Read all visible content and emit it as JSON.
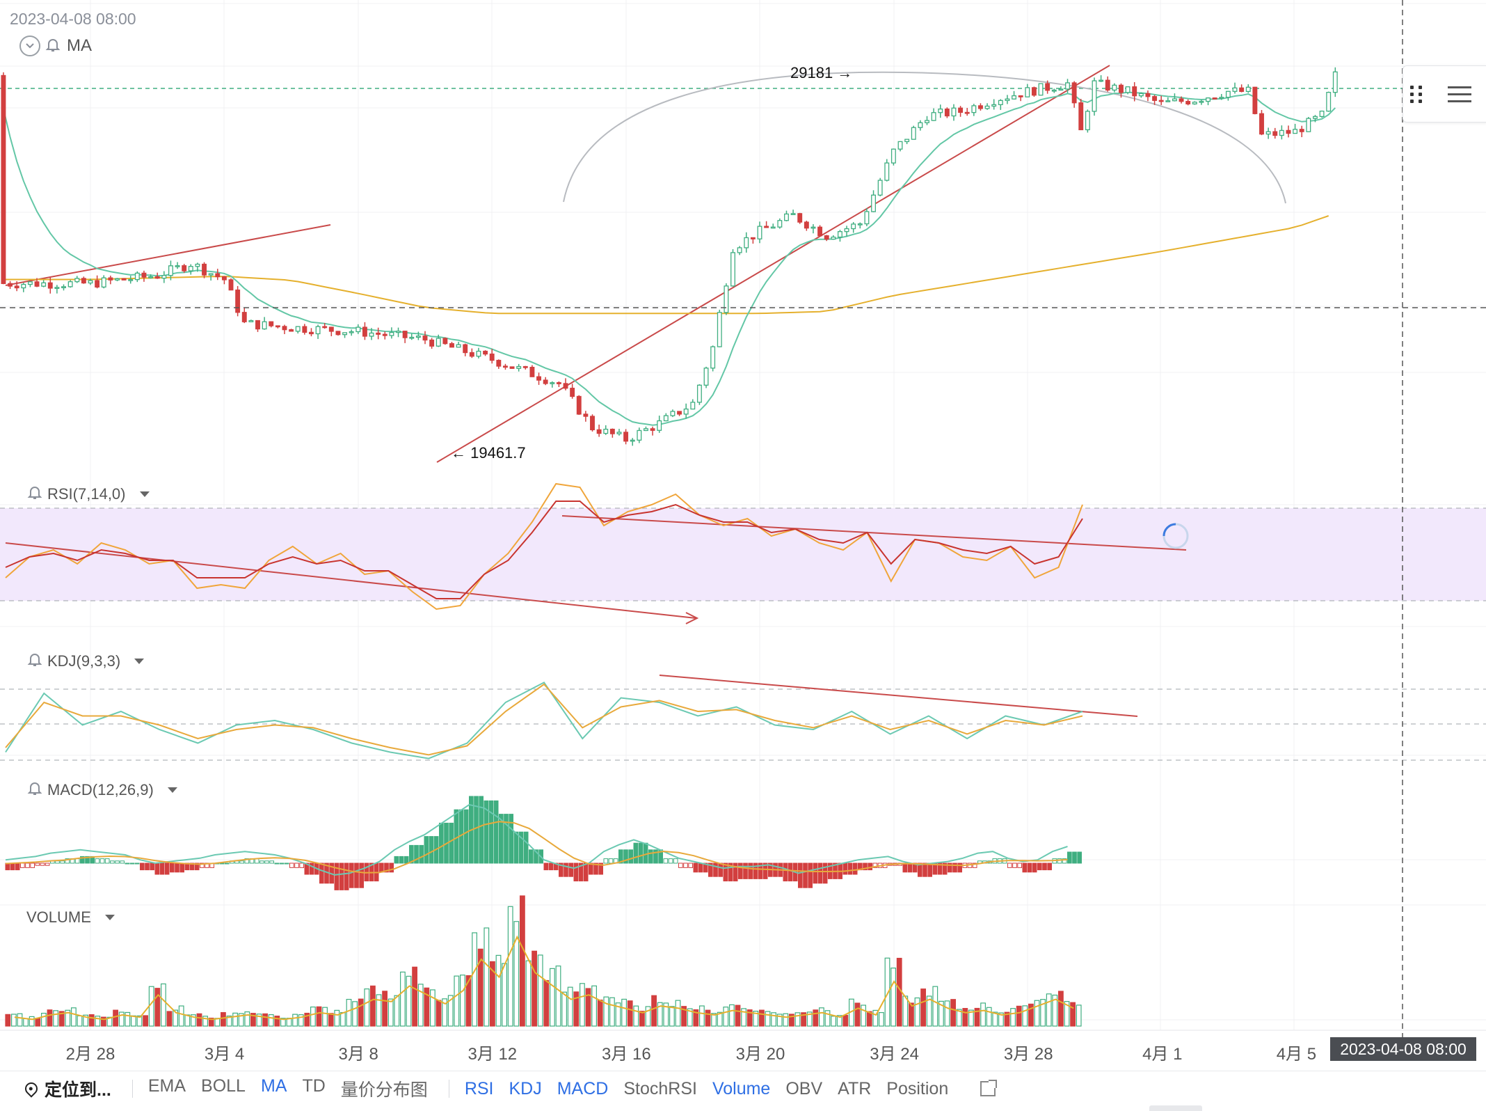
{
  "header": {
    "datetime": "2023-04-08 08:00",
    "ma_label": "MA",
    "high_label": "29181 →",
    "low_label": "← 19461.7"
  },
  "panels": {
    "rsi": "RSI(7,14,0)",
    "kdj": "KDJ(9,3,3)",
    "macd": "MACD(12,26,9)",
    "volume": "VOLUME"
  },
  "x_axis": {
    "labels": [
      "2月 28",
      "3月 4",
      "3月 8",
      "3月 12",
      "3月 16",
      "3月 20",
      "3月 24",
      "3月 28",
      "4月 1",
      "4月 5"
    ],
    "cursor_date": "2023-04-08 08:00"
  },
  "toolbar": {
    "locate": "定位到...",
    "main_indicators": [
      {
        "label": "EMA",
        "active": false
      },
      {
        "label": "BOLL",
        "active": false
      },
      {
        "label": "MA",
        "active": true
      },
      {
        "label": "TD",
        "active": false
      },
      {
        "label": "量价分布图",
        "active": false
      }
    ],
    "sub_indicators": [
      {
        "label": "RSI",
        "active": true
      },
      {
        "label": "KDJ",
        "active": true
      },
      {
        "label": "MACD",
        "active": true
      },
      {
        "label": "StochRSI",
        "active": false
      },
      {
        "label": "Volume",
        "active": true
      },
      {
        "label": "OBV",
        "active": false
      },
      {
        "label": "ATR",
        "active": false
      },
      {
        "label": "Position",
        "active": false
      }
    ]
  },
  "colors": {
    "up": "#3fae80",
    "down": "#d23f3f",
    "ma_fast": "#63c7a6",
    "ma_slow": "#e5b02d",
    "rsi_fast": "#f0a53a",
    "rsi_slow": "#c8342f",
    "kdj_k": "#6bc9b2",
    "kdj_d": "#e8a93b",
    "trendline": "#c94a4a",
    "rsi_band": "#f2e8fc"
  },
  "chart_data": {
    "type": "candlestick",
    "price_high": 29181,
    "price_low": 19461.7,
    "x_labels": [
      "2月 28",
      "3月 4",
      "3月 8",
      "3月 12",
      "3月 16",
      "3月 20",
      "3月 24",
      "3月 28",
      "4月 1",
      "4月 5"
    ],
    "price_path": [
      [
        0,
        23400
      ],
      [
        1,
        23600
      ],
      [
        1.5,
        23900
      ],
      [
        2,
        23500
      ],
      [
        2.3,
        22400
      ],
      [
        3,
        22300
      ],
      [
        4,
        22200
      ],
      [
        5,
        22000
      ],
      [
        6,
        21500
      ],
      [
        7,
        20900
      ],
      [
        7.5,
        19800
      ],
      [
        8,
        19500
      ],
      [
        8.5,
        19900
      ],
      [
        9,
        20400
      ],
      [
        9.3,
        21800
      ],
      [
        9.6,
        24300
      ],
      [
        10,
        24700
      ],
      [
        10.5,
        25100
      ],
      [
        11,
        24600
      ],
      [
        11.5,
        24900
      ],
      [
        12,
        26700
      ],
      [
        12.5,
        27600
      ],
      [
        13,
        27700
      ],
      [
        13.5,
        28000
      ],
      [
        14,
        28200
      ],
      [
        14.6,
        28400
      ],
      [
        14.8,
        27200
      ],
      [
        15,
        28400
      ],
      [
        15.5,
        28200
      ],
      [
        16,
        27900
      ],
      [
        16.5,
        28000
      ],
      [
        17,
        28200
      ],
      [
        17.3,
        28200
      ],
      [
        17.5,
        27100
      ],
      [
        18,
        27200
      ],
      [
        18.4,
        27600
      ],
      [
        18.6,
        28600
      ]
    ],
    "ma_slow_path": [
      [
        0,
        23500
      ],
      [
        2,
        23580
      ],
      [
        3,
        23480
      ],
      [
        4,
        23150
      ],
      [
        5,
        22800
      ],
      [
        6,
        22650
      ],
      [
        8,
        22650
      ],
      [
        10,
        22650
      ],
      [
        11,
        22700
      ],
      [
        12,
        23100
      ],
      [
        14,
        23650
      ],
      [
        16,
        24200
      ],
      [
        18,
        24800
      ],
      [
        18.6,
        25150
      ]
    ],
    "rsi": {
      "fast": [
        28,
        40,
        44,
        36,
        48,
        44,
        36,
        38,
        22,
        24,
        22,
        38,
        46,
        36,
        42,
        30,
        32,
        20,
        10,
        12,
        30,
        42,
        60,
        82,
        80,
        58,
        66,
        70,
        76,
        64,
        58,
        62,
        52,
        56,
        48,
        44,
        54,
        26,
        50,
        48,
        40,
        38,
        46,
        28,
        34,
        70
      ],
      "slow": [
        34,
        40,
        42,
        38,
        44,
        42,
        38,
        38,
        28,
        28,
        28,
        36,
        40,
        36,
        38,
        32,
        32,
        24,
        16,
        16,
        30,
        38,
        54,
        72,
        72,
        60,
        64,
        66,
        70,
        64,
        60,
        60,
        54,
        56,
        50,
        48,
        54,
        36,
        50,
        48,
        44,
        42,
        46,
        36,
        40,
        62
      ]
    },
    "kdj": {
      "k": [
        15,
        80,
        45,
        60,
        40,
        25,
        45,
        50,
        40,
        25,
        15,
        8,
        25,
        70,
        92,
        30,
        75,
        70,
        55,
        65,
        45,
        40,
        60,
        35,
        55,
        30,
        55,
        45,
        60
      ],
      "d": [
        20,
        70,
        55,
        55,
        45,
        30,
        40,
        45,
        42,
        30,
        20,
        12,
        22,
        60,
        90,
        42,
        65,
        72,
        60,
        62,
        50,
        42,
        55,
        40,
        50,
        35,
        50,
        45,
        55
      ]
    },
    "macd_hist": [
      -3,
      -2,
      -1,
      1,
      2,
      3,
      2,
      1,
      0,
      -3,
      -5,
      -4,
      -3,
      -2,
      0,
      1,
      2,
      1,
      0,
      -2,
      -5,
      -9,
      -12,
      -11,
      -8,
      -4,
      3,
      8,
      12,
      18,
      24,
      30,
      28,
      22,
      14,
      6,
      -3,
      -6,
      -8,
      -5,
      2,
      6,
      9,
      6,
      2,
      -2,
      -4,
      -6,
      -8,
      -7,
      -7,
      -6,
      -8,
      -11,
      -9,
      -7,
      -5,
      -3,
      -2,
      -1,
      -4,
      -6,
      -5,
      -4,
      -2,
      1,
      2,
      -2,
      -4,
      -3,
      2,
      5
    ],
    "volume": [
      4,
      3,
      5,
      6,
      4,
      3,
      5,
      4,
      14,
      6,
      4,
      3,
      4,
      5,
      4,
      3,
      4,
      6,
      5,
      8,
      12,
      11,
      18,
      14,
      10,
      16,
      30,
      22,
      40,
      24,
      18,
      12,
      14,
      10,
      8,
      6,
      9,
      8,
      6,
      5,
      7,
      6,
      5,
      4,
      5,
      6,
      4,
      8,
      5,
      20,
      9,
      12,
      8,
      6,
      7,
      5,
      6,
      9,
      12,
      8
    ]
  }
}
